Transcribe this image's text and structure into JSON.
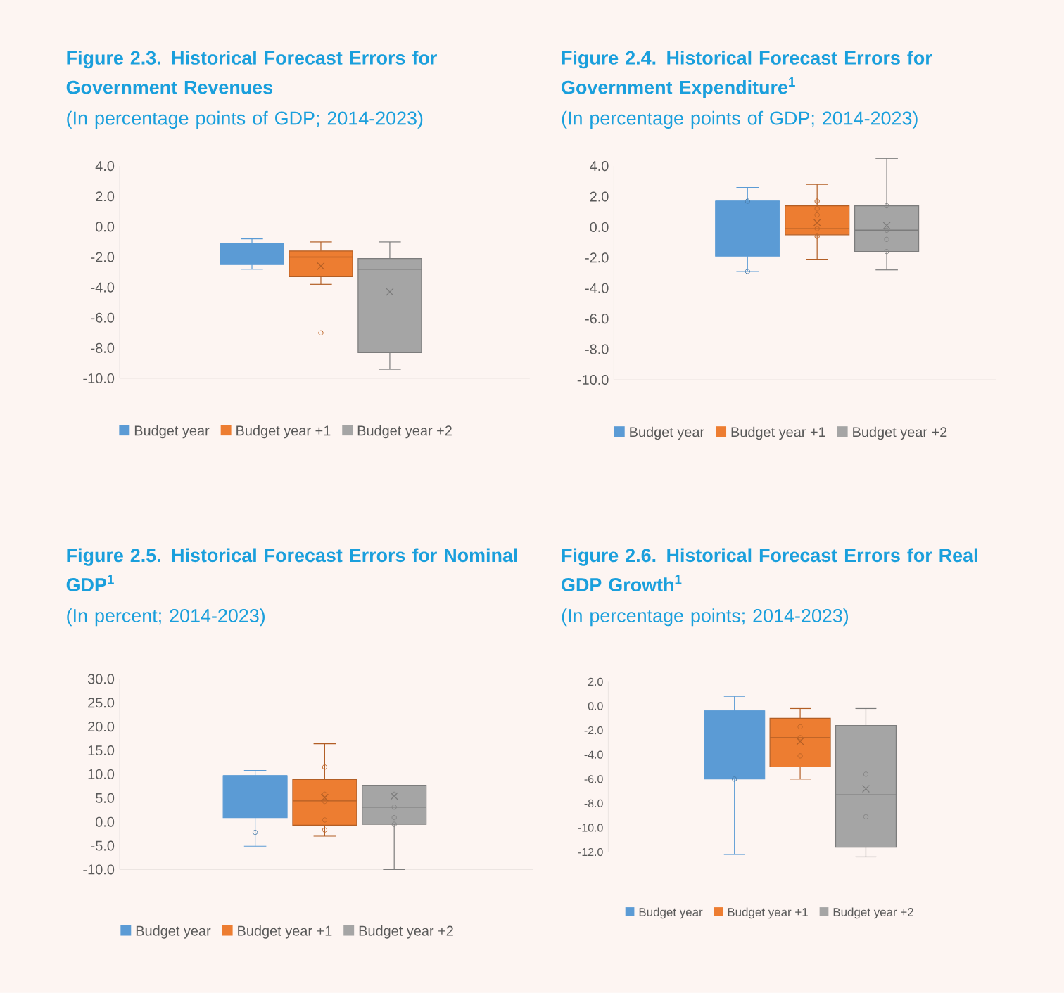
{
  "chart_data": [
    {
      "type": "box",
      "title": "Figure 2.3. Historical Forecast Errors for Government Revenues",
      "subtitle": "(In percentage points of GDP; 2014-2023)",
      "categories": [
        null
      ],
      "ylim": [
        -10,
        4
      ],
      "yticks": [
        {
          "value": 4,
          "label": "4.0"
        },
        {
          "value": 2,
          "label": "2.0"
        },
        {
          "value": 0,
          "label": "0.0"
        },
        {
          "value": -2,
          "label": "-2.0"
        },
        {
          "value": -4,
          "label": "-4.0"
        },
        {
          "value": -6,
          "label": "-6.0"
        },
        {
          "value": -8,
          "label": "-8.0"
        },
        {
          "value": -10,
          "label": "-10.0"
        }
      ],
      "legend": "bottom",
      "marker": "circle",
      "series": [
        {
          "name": "Budget year",
          "color": "#5b9bd5",
          "boxes": [
            {
              "low": -2.8,
              "q1": -2.5,
              "median": -1.1,
              "q3": -1.1,
              "high": -0.8
            }
          ]
        },
        {
          "name": "Budget year +1",
          "color": "#ed7d31",
          "boxes": [
            {
              "low": -3.8,
              "q1": -3.3,
              "median": -2.0,
              "q3": -1.6,
              "high": -1.0,
              "mean": -2.6,
              "outliers": [
                -7.0
              ]
            }
          ]
        },
        {
          "name": "Budget year +2",
          "color": "#a5a5a5",
          "boxes": [
            {
              "low": -9.4,
              "q1": -8.3,
              "median": -2.8,
              "q3": -2.1,
              "high": -1.0,
              "mean": -4.3
            }
          ]
        }
      ]
    },
    {
      "type": "box",
      "title": "Figure 2.4. Historical Forecast Errors for Government Expenditure$^{1}$",
      "subtitle": "(In percentage points of GDP; 2014-2023)",
      "categories": [
        null
      ],
      "ylim": [
        -10,
        4
      ],
      "yticks": [
        {
          "value": 4,
          "label": "4.0"
        },
        {
          "value": 2,
          "label": "2.0"
        },
        {
          "value": 0,
          "label": "0.0"
        },
        {
          "value": -2,
          "label": "-2.0"
        },
        {
          "value": -4,
          "label": "-4.0"
        },
        {
          "value": -6,
          "label": "-6.0"
        },
        {
          "value": -8,
          "label": "-8.0"
        },
        {
          "value": -10,
          "label": "-10.0"
        }
      ],
      "legend": "bottom",
      "marker": "circle",
      "series": [
        {
          "name": "Budget year",
          "color": "#5b9bd5",
          "boxes": [
            {
              "low": -2.9,
              "q1": -1.9,
              "median": 1.7,
              "q3": 1.7,
              "high": 2.6,
              "outliers": [
                1.7,
                -2.9
              ]
            }
          ]
        },
        {
          "name": "Budget year +1",
          "color": "#ed7d31",
          "boxes": [
            {
              "low": -2.1,
              "q1": -0.5,
              "median": -0.1,
              "q3": 1.4,
              "high": 2.8,
              "mean": 0.3,
              "outliers": [
                1.7,
                1.2,
                0.8,
                -0.1,
                -0.6
              ]
            }
          ]
        },
        {
          "name": "Budget year +2",
          "color": "#a5a5a5",
          "boxes": [
            {
              "low": -2.8,
              "q1": -1.6,
              "median": -0.2,
              "q3": 1.4,
              "high": 4.5,
              "mean": 0.1,
              "outliers": [
                1.4,
                -0.2,
                -0.8,
                -1.6
              ]
            }
          ]
        }
      ]
    },
    {
      "type": "box",
      "title": "Figure 2.5. Historical Forecast Errors for Nominal GDP$^{1}$",
      "subtitle": "(In percent; 2014-2023)",
      "categories": [
        null
      ],
      "ylim": [
        -10,
        30
      ],
      "yticks": [
        {
          "value": 30,
          "label": "30.0"
        },
        {
          "value": 25,
          "label": "25.0"
        },
        {
          "value": 20,
          "label": "20.0"
        },
        {
          "value": 15,
          "label": "15.0"
        },
        {
          "value": 10,
          "label": "10.0"
        },
        {
          "value": 5,
          "label": "5.0"
        },
        {
          "value": 0,
          "label": "0.0"
        },
        {
          "value": -5,
          "label": "-5.0"
        },
        {
          "value": -10,
          "label": "-10.0"
        }
      ],
      "legend": "bottom",
      "marker": "circle",
      "series": [
        {
          "name": "Budget year",
          "color": "#5b9bd5",
          "boxes": [
            {
              "low": -5.1,
              "q1": 0.9,
              "median": 9.7,
              "q3": 9.7,
              "high": 10.8,
              "outliers": [
                -2.2
              ]
            }
          ]
        },
        {
          "name": "Budget year +1",
          "color": "#ed7d31",
          "boxes": [
            {
              "low": -3.0,
              "q1": -0.7,
              "median": 4.4,
              "q3": 8.9,
              "high": 16.4,
              "mean": 5.1,
              "outliers": [
                11.5,
                5.8,
                4.3,
                0.4,
                -1.7
              ]
            }
          ]
        },
        {
          "name": "Budget year +2",
          "color": "#a5a5a5",
          "boxes": [
            {
              "low": -10.0,
              "q1": -0.5,
              "median": 3.1,
              "q3": 7.7,
              "high": 7.7,
              "mean": 5.4,
              "outliers": [
                5.8,
                3.1,
                0.9,
                -0.5
              ]
            }
          ]
        }
      ]
    },
    {
      "type": "box",
      "title": "Figure 2.6. Historical Forecast Errors for Real GDP Growth$^{1}$",
      "subtitle": "(In percentage points; 2014-2023)",
      "categories": [
        null
      ],
      "ylim": [
        -12,
        2
      ],
      "yticks": [
        {
          "value": 2,
          "label": "2.0"
        },
        {
          "value": 0,
          "label": "0.0"
        },
        {
          "value": -2,
          "label": "-2.0"
        },
        {
          "value": -4,
          "label": "-4.0"
        },
        {
          "value": -6,
          "label": "-6.0"
        },
        {
          "value": -8,
          "label": "-8.0"
        },
        {
          "value": -10,
          "label": "-10.0"
        },
        {
          "value": -12,
          "label": "-12.0"
        }
      ],
      "legend": "bottom",
      "marker": "circle",
      "series": [
        {
          "name": "Budget year",
          "color": "#5b9bd5",
          "boxes": [
            {
              "low": -12.2,
              "q1": -6.0,
              "median": -0.4,
              "q3": -0.4,
              "high": 0.8,
              "outliers": [
                -6.0
              ]
            }
          ]
        },
        {
          "name": "Budget year +1",
          "color": "#ed7d31",
          "boxes": [
            {
              "low": -6.0,
              "q1": -5.0,
              "median": -2.6,
              "q3": -1.0,
              "high": -0.2,
              "mean": -2.9,
              "outliers": [
                -1.7,
                -2.6,
                -4.1
              ]
            }
          ]
        },
        {
          "name": "Budget year +2",
          "color": "#a5a5a5",
          "boxes": [
            {
              "low": -12.4,
              "q1": -11.6,
              "median": -7.3,
              "q3": -1.6,
              "high": -0.2,
              "mean": -6.8,
              "outliers": [
                -5.6,
                -9.1
              ]
            }
          ]
        }
      ]
    }
  ]
}
